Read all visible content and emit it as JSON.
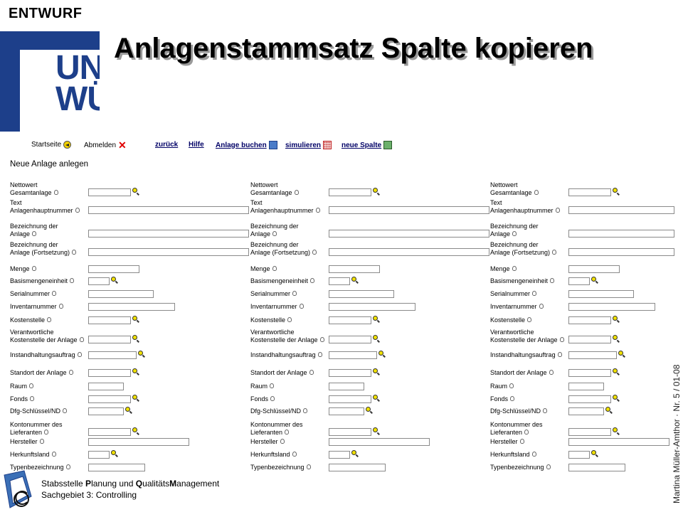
{
  "draft_label": "ENTWURF",
  "logo": {
    "text_line1": "UNI",
    "text_line2": "WÜ"
  },
  "title": "Anlagenstammsatz Spalte kopieren",
  "side_text": "Martina Müller-Amthor · Nr. 5 / 01-08",
  "toolbar": {
    "startseite": "Startseite",
    "abmelden": "Abmelden",
    "zurueck": "zurück",
    "hilfe": "Hilfe",
    "anlage_buchen": "Anlage buchen",
    "simulieren": "simulieren",
    "neue_spalte": "neue Spalte"
  },
  "section_title": "Neue Anlage anlegen",
  "fields": [
    {
      "label": "Nettowert\nGesamtanlage",
      "help": true,
      "lens": true
    },
    {
      "label": "Text\nAnlagenhauptnummer",
      "help": true,
      "lens": false
    },
    {
      "label": "Bezeichnung der\nAnlage",
      "help": true,
      "lens": false
    },
    {
      "label": "Bezeichnung der\nAnlage (Fortsetzung)",
      "help": true,
      "lens": false
    },
    {
      "label": "Menge",
      "help": true,
      "lens": false
    },
    {
      "label": "Basismengeneinheit",
      "help": true,
      "lens": true
    },
    {
      "label": "Serialnummer",
      "help": true,
      "lens": false
    },
    {
      "label": "Inventarnummer",
      "help": true,
      "lens": false
    },
    {
      "label": "Kostenstelle",
      "help": true,
      "lens": true
    },
    {
      "label": "Verantwortliche\nKostenstelle der Anlage",
      "help": true,
      "lens": true
    },
    {
      "label": "Instandhaltungsauftrag",
      "help": true,
      "lens": true
    },
    {
      "label": "Standort der Anlage",
      "help": true,
      "lens": true
    },
    {
      "label": "Raum",
      "help": true,
      "lens": false
    },
    {
      "label": "Fonds",
      "help": true,
      "lens": true
    },
    {
      "label": "Dfg-Schlüssel/ND",
      "help": true,
      "lens": true
    },
    {
      "label": "Kontonummer des\nLieferanten",
      "help": true,
      "lens": true
    },
    {
      "label": "Hersteller",
      "help": true,
      "lens": false
    },
    {
      "label": "Herkunftsland",
      "help": true,
      "lens": true
    },
    {
      "label": "Typenbezeichnung",
      "help": true,
      "lens": false
    }
  ],
  "column_count": 3,
  "footer": {
    "line1_parts": [
      "Stabsstelle ",
      "P",
      "lanung und ",
      "Q",
      "ualitäts",
      "M",
      "anagement"
    ],
    "line2": "Sachgebiet 3: Controlling"
  },
  "colors": {
    "brand_blue": "#1d3f8a",
    "link": "#000066",
    "lens": "#f0e000",
    "delete": "#e00000"
  },
  "icons": [
    "home-icon",
    "delete-icon",
    "save-icon",
    "simulate-icon",
    "new-column-icon",
    "help-icon",
    "search-lens-icon"
  ]
}
